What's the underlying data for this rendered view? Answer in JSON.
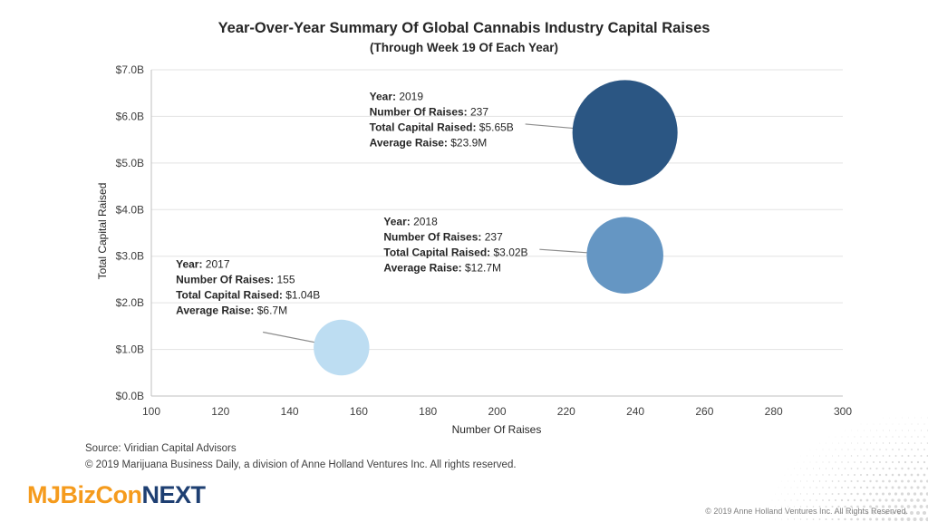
{
  "chart_data": {
    "type": "scatter",
    "title": "Year-Over-Year Summary Of Global Cannabis Industry Capital Raises",
    "subtitle": "(Through Week 19 Of Each Year)",
    "xlabel": "Number Of Raises",
    "ylabel": "Total Capital Raised",
    "xlim": [
      100,
      300
    ],
    "ylim": [
      0,
      7
    ],
    "x_ticks": [
      "100",
      "120",
      "140",
      "160",
      "180",
      "200",
      "220",
      "240",
      "260",
      "280",
      "300"
    ],
    "y_ticks": [
      "$0.0B",
      "$1.0B",
      "$2.0B",
      "$3.0B",
      "$4.0B",
      "$5.0B",
      "$6.0B",
      "$7.0B"
    ],
    "grid": "horizontal",
    "points": [
      {
        "year": "2017",
        "x": 155,
        "y": 1.04,
        "size": 6.7,
        "color": "#bdddf2",
        "labels": [
          {
            "k": "Year:",
            "v": " 2017"
          },
          {
            "k": "Number Of Raises:",
            "v": " 155"
          },
          {
            "k": "Total Capital Raised:",
            "v": " $1.04B"
          },
          {
            "k": "Average Raise:",
            "v": " $6.7M"
          }
        ]
      },
      {
        "year": "2018",
        "x": 237,
        "y": 3.02,
        "size": 12.7,
        "color": "#6596c3",
        "labels": [
          {
            "k": "Year:",
            "v": " 2018"
          },
          {
            "k": "Number Of Raises:",
            "v": " 237"
          },
          {
            "k": "Total Capital Raised:",
            "v": " $3.02B"
          },
          {
            "k": "Average Raise:",
            "v": " $12.7M"
          }
        ]
      },
      {
        "year": "2019",
        "x": 237,
        "y": 5.65,
        "size": 23.9,
        "color": "#2b5683",
        "labels": [
          {
            "k": "Year:",
            "v": " 2019"
          },
          {
            "k": "Number Of Raises:",
            "v": " 237"
          },
          {
            "k": "Total Capital Raised:",
            "v": " $5.65B"
          },
          {
            "k": "Average Raise:",
            "v": " $23.9M"
          }
        ]
      }
    ]
  },
  "footer": {
    "source": "Source: Viridian Capital Advisors",
    "copyright": "© 2019 Marijuana Business Daily, a division of Anne Holland Ventures Inc. All rights reserved.",
    "logo_part1": "MJBizCon",
    "logo_part2": "NEXT",
    "corner_copyright": "© 2019 Anne Holland Ventures Inc. All Rights Reserved."
  }
}
